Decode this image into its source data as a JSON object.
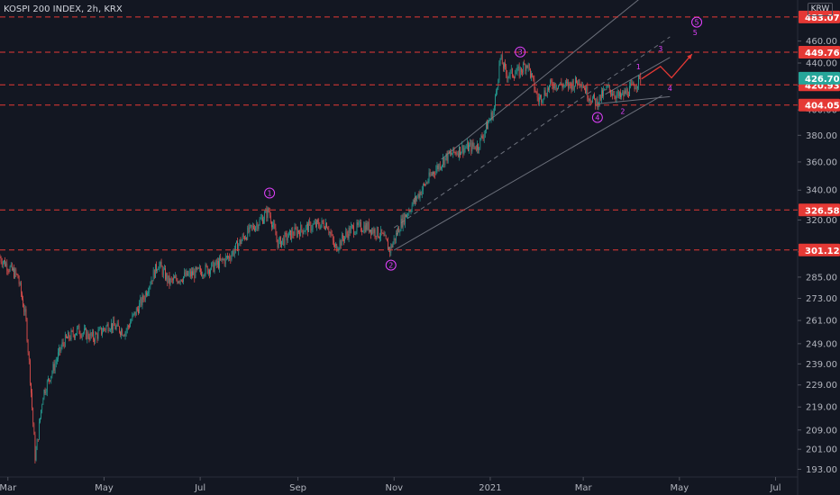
{
  "header": {
    "title": "KOSPI 200 INDEX, 2h, KRX",
    "currency": "KRW"
  },
  "colors": {
    "background": "#131722",
    "up_candle": "#26a69a",
    "down_candle": "#ef5350",
    "level_line": "#e53935",
    "price_badge": "#26a69a",
    "channel_line": "#6b6f7a",
    "wave_label": "#e040fb",
    "projection": "#e53935",
    "axis_text": "#b2b5be"
  },
  "chart_data": {
    "type": "candlestick",
    "title": "KOSPI 200 INDEX, 2h, KRX",
    "x_axis": {
      "ticks": [
        "Mar",
        "May",
        "Jul",
        "Sep",
        "Nov",
        "2021",
        "Mar",
        "May",
        "Jul"
      ],
      "range": [
        "2020-02-25",
        "2021-07-15"
      ]
    },
    "y_axis": {
      "scale": "log",
      "range": [
        190,
        500
      ],
      "ticks": [
        "193.00",
        "201.00",
        "209.00",
        "219.00",
        "229.00",
        "239.00",
        "249.00",
        "261.00",
        "273.00",
        "285.00",
        "300.00",
        "320.00",
        "340.00",
        "360.00",
        "380.00",
        "400.00",
        "420.00",
        "440.00",
        "460.00"
      ]
    },
    "horizontal_levels": [
      {
        "value": "483.07"
      },
      {
        "value": "449.76"
      },
      {
        "value": "420.93"
      },
      {
        "value": "404.05"
      },
      {
        "value": "326.58"
      },
      {
        "value": "301.12"
      }
    ],
    "last_price": "426.70",
    "price_path": [
      [
        "2020-02-25",
        297
      ],
      [
        "2020-03-03",
        290
      ],
      [
        "2020-03-08",
        285
      ],
      [
        "2020-03-13",
        262
      ],
      [
        "2020-03-19",
        197
      ],
      [
        "2020-03-24",
        225
      ],
      [
        "2020-03-30",
        236
      ],
      [
        "2020-04-06",
        250
      ],
      [
        "2020-04-15",
        256
      ],
      [
        "2020-04-25",
        252
      ],
      [
        "2020-05-05",
        259
      ],
      [
        "2020-05-15",
        255
      ],
      [
        "2020-05-26",
        272
      ],
      [
        "2020-06-05",
        293
      ],
      [
        "2020-06-12",
        282
      ],
      [
        "2020-06-20",
        285
      ],
      [
        "2020-07-01",
        288
      ],
      [
        "2020-07-10",
        291
      ],
      [
        "2020-07-20",
        297
      ],
      [
        "2020-07-30",
        310
      ],
      [
        "2020-08-10",
        321
      ],
      [
        "2020-08-14",
        326
      ],
      [
        "2020-08-20",
        305
      ],
      [
        "2020-08-30",
        312
      ],
      [
        "2020-09-10",
        316
      ],
      [
        "2020-09-20",
        318
      ],
      [
        "2020-09-25",
        302
      ],
      [
        "2020-10-05",
        314
      ],
      [
        "2020-10-15",
        316
      ],
      [
        "2020-10-25",
        310
      ],
      [
        "2020-10-30",
        301
      ],
      [
        "2020-11-06",
        318
      ],
      [
        "2020-11-16",
        335
      ],
      [
        "2020-11-26",
        352
      ],
      [
        "2020-12-05",
        364
      ],
      [
        "2020-12-15",
        370
      ],
      [
        "2020-12-25",
        372
      ],
      [
        "2021-01-04",
        400
      ],
      [
        "2021-01-08",
        444
      ],
      [
        "2021-01-12",
        430
      ],
      [
        "2021-01-20",
        432
      ],
      [
        "2021-01-25",
        440
      ],
      [
        "2021-02-01",
        408
      ],
      [
        "2021-02-10",
        422
      ],
      [
        "2021-02-20",
        420
      ],
      [
        "2021-02-28",
        425
      ],
      [
        "2021-03-05",
        412
      ],
      [
        "2021-03-10",
        406
      ],
      [
        "2021-03-17",
        418
      ],
      [
        "2021-03-25",
        410
      ],
      [
        "2021-04-01",
        418
      ],
      [
        "2021-04-07",
        426
      ]
    ],
    "channel_lines": [
      {
        "from": [
          "2020-12-01",
          362
        ],
        "to": [
          "2021-04-20",
          520
        ]
      },
      {
        "from": [
          "2020-11-01",
          301
        ],
        "to": [
          "2021-04-20",
          412
        ]
      },
      {
        "from": [
          "2020-11-01",
          315
        ],
        "to": [
          "2021-04-25",
          464
        ],
        "dashed": true
      },
      {
        "from": [
          "2021-03-10",
          405
        ],
        "to": [
          "2021-04-25",
          411
        ]
      },
      {
        "from": [
          "2021-03-15",
          413
        ],
        "to": [
          "2021-04-25",
          445
        ]
      }
    ],
    "wave_labels": [
      {
        "label": "1",
        "circled": true,
        "at": [
          "2020-08-14",
          338
        ]
      },
      {
        "label": "2",
        "circled": true,
        "at": [
          "2020-10-30",
          292
        ]
      },
      {
        "label": "3",
        "circled": true,
        "at": [
          "2021-01-20",
          450
        ]
      },
      {
        "label": "4",
        "circled": true,
        "at": [
          "2021-03-10",
          394
        ]
      },
      {
        "label": "5",
        "circled": true,
        "at": [
          "2021-05-12",
          478
        ]
      },
      {
        "label": "1",
        "circled": false,
        "at": [
          "2021-04-05",
          437
        ]
      },
      {
        "label": "2",
        "circled": false,
        "at": [
          "2021-03-26",
          399
        ]
      },
      {
        "label": "3",
        "circled": false,
        "at": [
          "2021-04-19",
          453
        ]
      },
      {
        "label": "4",
        "circled": false,
        "at": [
          "2021-04-25",
          418
        ]
      },
      {
        "label": "5",
        "circled": false,
        "at": [
          "2021-05-11",
          468
        ]
      }
    ],
    "projection_path": [
      [
        "2021-04-07",
        426
      ],
      [
        "2021-04-19",
        437
      ],
      [
        "2021-04-26",
        427
      ],
      [
        "2021-05-09",
        448
      ]
    ]
  }
}
